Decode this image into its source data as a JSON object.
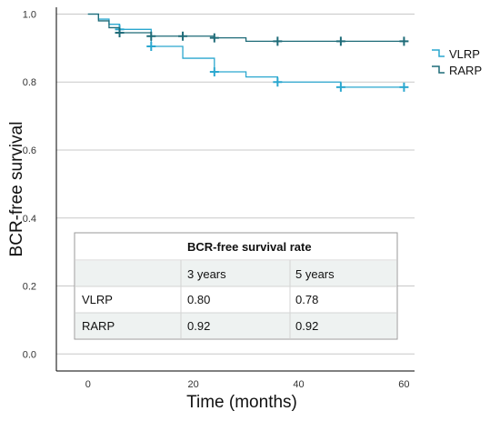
{
  "chart_data": {
    "type": "line",
    "step": true,
    "xlabel": "Time (months)",
    "ylabel": "BCR-free survival",
    "xlim": [
      -6,
      62
    ],
    "ylim": [
      -0.05,
      1.02
    ],
    "xticks": [
      0,
      20,
      40,
      60
    ],
    "yticks": [
      0.0,
      0.2,
      0.4,
      0.6,
      0.8,
      1.0
    ],
    "ytick_labels": [
      "0.0",
      "0.2",
      "0.4",
      "0.6",
      "0.8",
      "1.0"
    ],
    "grid": "horizontal",
    "legend_position": "right",
    "series": [
      {
        "name": "VLRP",
        "color": "#2aa7cf",
        "x": [
          0,
          2,
          4,
          6,
          12,
          18,
          24,
          30,
          36,
          48,
          60
        ],
        "y": [
          1.0,
          0.985,
          0.97,
          0.955,
          0.905,
          0.87,
          0.83,
          0.815,
          0.8,
          0.785,
          0.785
        ],
        "censored": [
          {
            "x": 6,
            "y": 0.955
          },
          {
            "x": 12,
            "y": 0.905
          },
          {
            "x": 24,
            "y": 0.83
          },
          {
            "x": 36,
            "y": 0.8
          },
          {
            "x": 48,
            "y": 0.785
          },
          {
            "x": 60,
            "y": 0.785
          }
        ]
      },
      {
        "name": "RARP",
        "color": "#1e6b78",
        "x": [
          0,
          2,
          4,
          6,
          12,
          24,
          30,
          36,
          60
        ],
        "y": [
          1.0,
          0.98,
          0.96,
          0.945,
          0.935,
          0.93,
          0.92,
          0.92,
          0.92
        ],
        "censored": [
          {
            "x": 6,
            "y": 0.945
          },
          {
            "x": 12,
            "y": 0.935
          },
          {
            "x": 18,
            "y": 0.935
          },
          {
            "x": 24,
            "y": 0.93
          },
          {
            "x": 36,
            "y": 0.92
          },
          {
            "x": 48,
            "y": 0.92
          },
          {
            "x": 60,
            "y": 0.92
          }
        ]
      }
    ]
  },
  "table": {
    "title": "BCR-free survival rate",
    "columns": [
      "3 years",
      "5 years"
    ],
    "rows": [
      {
        "label": "VLRP",
        "values": [
          "0.80",
          "0.78"
        ]
      },
      {
        "label": "RARP",
        "values": [
          "0.92",
          "0.92"
        ]
      }
    ]
  }
}
